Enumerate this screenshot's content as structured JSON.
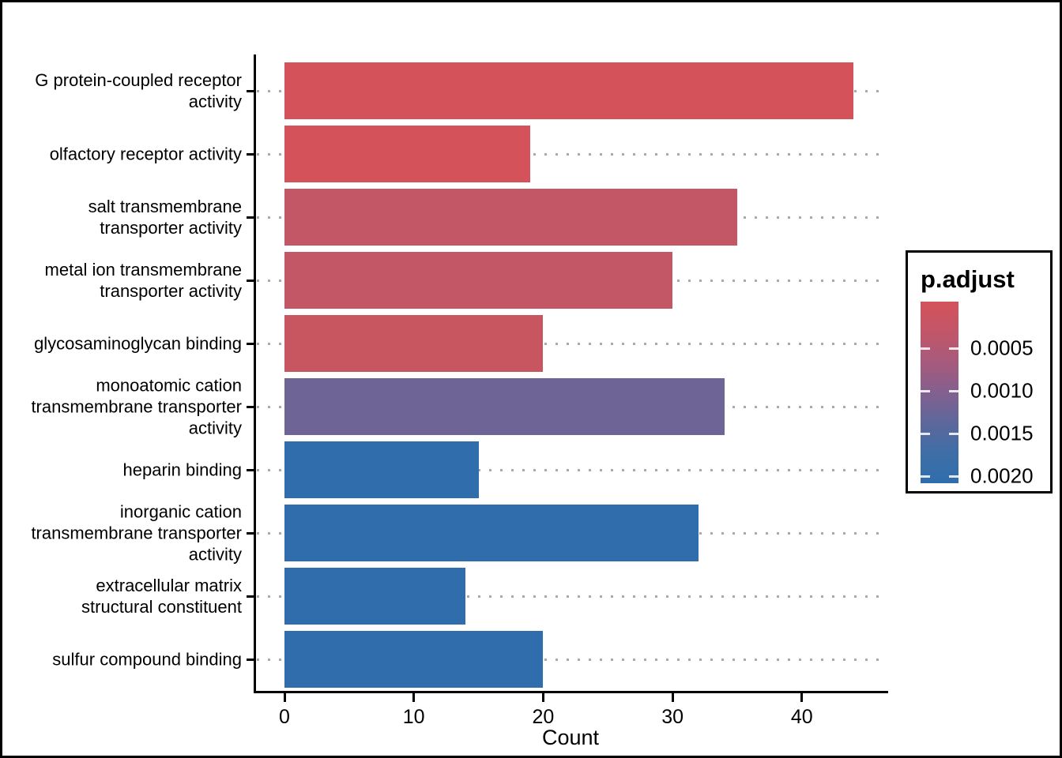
{
  "chart_data": {
    "type": "bar",
    "orientation": "horizontal",
    "title": "",
    "xlabel": "Count",
    "ylabel": "",
    "x_ticks": [
      0,
      10,
      20,
      30,
      40
    ],
    "xlim": [
      0,
      46.5
    ],
    "grid": "dotted-horizontal",
    "legend": {
      "title": "p.adjust",
      "position": "right",
      "tick_labels": [
        "0.0005",
        "0.0010",
        "0.0015",
        "0.0020"
      ],
      "gradient": [
        "#d4525a",
        "#c25669",
        "#a75a7c",
        "#83608f",
        "#5d679c",
        "#3f6ea7",
        "#2f6dad"
      ]
    },
    "bars": [
      {
        "label": "G protein-coupled receptor activity",
        "label_lines": [
          "G protein-coupled receptor",
          "activity"
        ],
        "value": 44,
        "fill": "#d4525a"
      },
      {
        "label": "olfactory receptor activity",
        "label_lines": [
          "olfactory receptor activity"
        ],
        "value": 19,
        "fill": "#d4525a"
      },
      {
        "label": "salt transmembrane transporter activity",
        "label_lines": [
          "salt transmembrane",
          "transporter activity"
        ],
        "value": 35,
        "fill": "#c35766"
      },
      {
        "label": "metal ion transmembrane transporter activity",
        "label_lines": [
          "metal ion transmembrane",
          "transporter activity"
        ],
        "value": 30,
        "fill": "#c35766"
      },
      {
        "label": "glycosaminoglycan binding",
        "label_lines": [
          "glycosaminoglycan binding"
        ],
        "value": 20,
        "fill": "#c85660"
      },
      {
        "label": "monoatomic cation transmembrane transporter activity",
        "label_lines": [
          "monoatomic cation",
          "transmembrane transporter",
          "activity"
        ],
        "value": 34,
        "fill": "#6e6496"
      },
      {
        "label": "heparin binding",
        "label_lines": [
          "heparin binding"
        ],
        "value": 15,
        "fill": "#2f6dad"
      },
      {
        "label": "inorganic cation transmembrane transporter activity",
        "label_lines": [
          "inorganic cation",
          "transmembrane transporter",
          "activity"
        ],
        "value": 32,
        "fill": "#2f6dad"
      },
      {
        "label": "extracellular matrix structural constituent",
        "label_lines": [
          "extracellular matrix",
          "structural constituent"
        ],
        "value": 14,
        "fill": "#2f6dad"
      },
      {
        "label": "sulfur compound binding",
        "label_lines": [
          "sulfur compound binding"
        ],
        "value": 20,
        "fill": "#2f6dad"
      }
    ]
  }
}
